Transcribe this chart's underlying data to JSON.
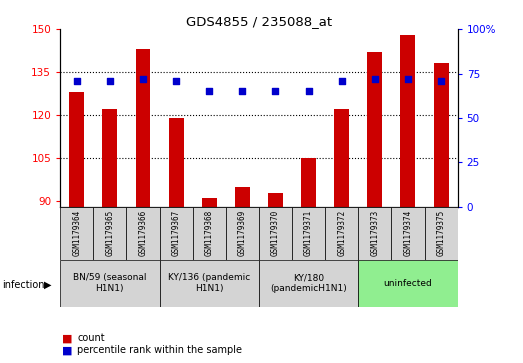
{
  "title": "GDS4855 / 235088_at",
  "samples": [
    "GSM1179364",
    "GSM1179365",
    "GSM1179366",
    "GSM1179367",
    "GSM1179368",
    "GSM1179369",
    "GSM1179370",
    "GSM1179371",
    "GSM1179372",
    "GSM1179373",
    "GSM1179374",
    "GSM1179375"
  ],
  "counts": [
    128,
    122,
    143,
    119,
    91,
    95,
    93,
    105,
    122,
    142,
    148,
    138
  ],
  "percentiles": [
    71,
    71,
    72,
    71,
    65,
    65,
    65,
    65,
    71,
    72,
    72,
    71
  ],
  "ylim_left": [
    88,
    150
  ],
  "ylim_right": [
    0,
    100
  ],
  "yticks_left": [
    90,
    105,
    120,
    135,
    150
  ],
  "yticks_right": [
    0,
    25,
    50,
    75,
    100
  ],
  "ytick_labels_right": [
    "0",
    "25",
    "50",
    "75",
    "100%"
  ],
  "bar_color": "#cc0000",
  "dot_color": "#0000cc",
  "groups": [
    {
      "label": "BN/59 (seasonal\nH1N1)",
      "start": 0,
      "end": 3,
      "color": "#d4d4d4"
    },
    {
      "label": "KY/136 (pandemic\nH1N1)",
      "start": 3,
      "end": 6,
      "color": "#d4d4d4"
    },
    {
      "label": "KY/180\n(pandemicH1N1)",
      "start": 6,
      "end": 9,
      "color": "#d4d4d4"
    },
    {
      "label": "uninfected",
      "start": 9,
      "end": 12,
      "color": "#90ee90"
    }
  ],
  "infection_label": "infection",
  "legend_count_label": "count",
  "legend_pct_label": "percentile rank within the sample",
  "bar_bottom": 88,
  "bar_width": 0.45
}
